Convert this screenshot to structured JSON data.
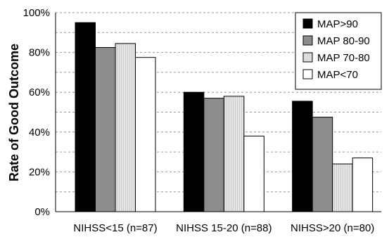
{
  "chart_data": {
    "type": "bar",
    "title": "",
    "xlabel": "",
    "ylabel": "Rate of Good Outcome",
    "ylim": [
      0,
      100
    ],
    "yticks": [
      "0%",
      "20%",
      "40%",
      "60%",
      "80%",
      "100%"
    ],
    "categories": [
      "NIHSS<15 (n=87)",
      "NIHSS 15-20 (n=88)",
      "NIHSS>20 (n=80)"
    ],
    "series": [
      {
        "name": "MAP>90",
        "values": [
          95,
          60,
          55.5
        ],
        "color": "#000000",
        "pattern": "solid"
      },
      {
        "name": "MAP 80-90",
        "values": [
          82.5,
          57,
          47.5
        ],
        "color": "#8c8c8c",
        "pattern": "solid"
      },
      {
        "name": "MAP 70-80",
        "values": [
          84.5,
          58,
          24
        ],
        "color": "#e0e0e0",
        "pattern": "vertical-stripes"
      },
      {
        "name": "MAP<70",
        "values": [
          77.5,
          38,
          27
        ],
        "color": "#ffffff",
        "pattern": "solid"
      }
    ],
    "grid": true,
    "grid_style": "dashed",
    "legend": "top-right"
  }
}
